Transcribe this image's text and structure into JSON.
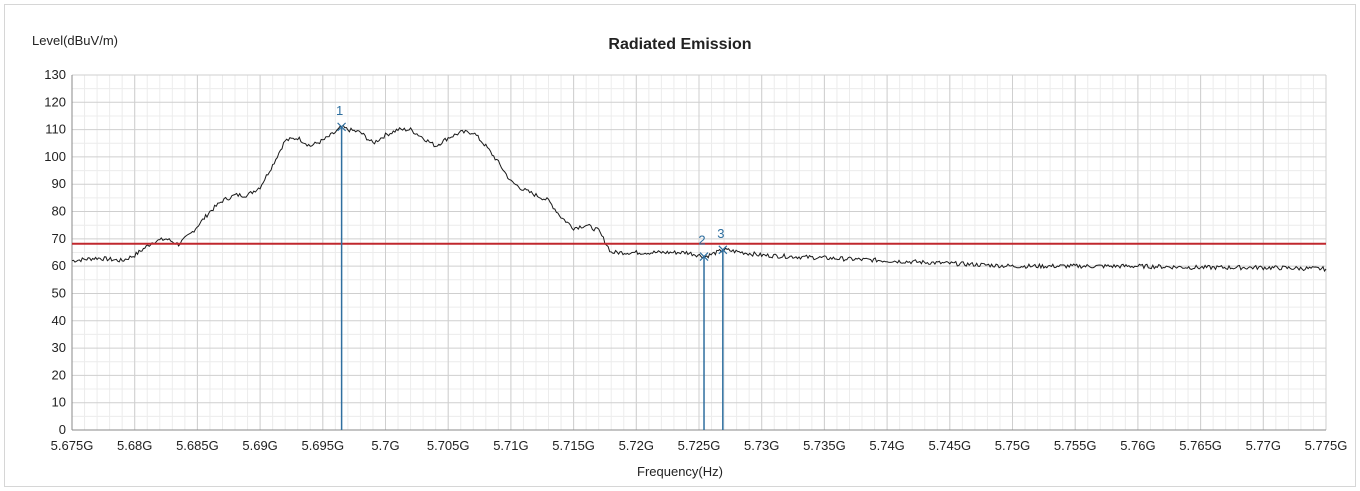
{
  "chart_data": {
    "type": "line",
    "title": "Radiated Emission",
    "ylabel": "Level(dBuV/m)",
    "xlabel": "Frequency(Hz)",
    "ylim": [
      0,
      130
    ],
    "xlim": [
      5.675,
      5.775
    ],
    "x_unit": "GHz",
    "yticks": [
      0,
      10,
      20,
      30,
      40,
      50,
      60,
      70,
      80,
      90,
      100,
      110,
      120,
      130
    ],
    "xticks": [
      {
        "v": 5.675,
        "label": "5.675G"
      },
      {
        "v": 5.68,
        "label": "5.68G"
      },
      {
        "v": 5.685,
        "label": "5.685G"
      },
      {
        "v": 5.69,
        "label": "5.69G"
      },
      {
        "v": 5.695,
        "label": "5.695G"
      },
      {
        "v": 5.7,
        "label": "5.7G"
      },
      {
        "v": 5.705,
        "label": "5.705G"
      },
      {
        "v": 5.71,
        "label": "5.71G"
      },
      {
        "v": 5.715,
        "label": "5.715G"
      },
      {
        "v": 5.72,
        "label": "5.72G"
      },
      {
        "v": 5.725,
        "label": "5.725G"
      },
      {
        "v": 5.73,
        "label": "5.73G"
      },
      {
        "v": 5.735,
        "label": "5.735G"
      },
      {
        "v": 5.74,
        "label": "5.74G"
      },
      {
        "v": 5.745,
        "label": "5.745G"
      },
      {
        "v": 5.75,
        "label": "5.75G"
      },
      {
        "v": 5.755,
        "label": "5.755G"
      },
      {
        "v": 5.76,
        "label": "5.76G"
      },
      {
        "v": 5.765,
        "label": "5.765G"
      },
      {
        "v": 5.77,
        "label": "5.77G"
      },
      {
        "v": 5.775,
        "label": "5.775G"
      }
    ],
    "grid": true,
    "limit_line": {
      "value": 68.2,
      "color": "#c0282e"
    },
    "series": [
      {
        "color": "#1a1a1a",
        "x": [
          5.675,
          5.677,
          5.679,
          5.68,
          5.6815,
          5.6825,
          5.6835,
          5.6845,
          5.686,
          5.687,
          5.688,
          5.689,
          5.69,
          5.691,
          5.692,
          5.693,
          5.694,
          5.695,
          5.696,
          5.6965,
          5.697,
          5.698,
          5.699,
          5.7,
          5.701,
          5.702,
          5.703,
          5.704,
          5.705,
          5.706,
          5.707,
          5.708,
          5.709,
          5.71,
          5.711,
          5.712,
          5.713,
          5.714,
          5.715,
          5.716,
          5.717,
          5.718,
          5.72,
          5.722,
          5.724,
          5.7255,
          5.727,
          5.73,
          5.735,
          5.74,
          5.745,
          5.75,
          5.755,
          5.76,
          5.765,
          5.77,
          5.775
        ],
        "y": [
          62,
          63,
          62,
          64,
          69,
          70,
          68,
          72,
          80,
          84,
          86,
          86,
          89,
          97,
          106,
          107,
          104,
          106,
          109,
          111,
          110,
          109,
          105,
          108,
          110,
          110,
          107,
          104,
          107,
          109,
          109,
          104,
          98,
          91,
          88,
          86,
          84,
          78,
          74,
          75,
          73,
          65,
          65,
          65,
          65,
          63.5,
          66,
          64,
          63,
          62,
          61,
          60,
          60,
          60,
          59.5,
          59.5,
          59
        ]
      }
    ],
    "markers": [
      {
        "label": "1",
        "x": 5.6965,
        "y": 111.0
      },
      {
        "label": "2",
        "x": 5.7254,
        "y": 63.5
      },
      {
        "label": "3",
        "x": 5.7269,
        "y": 66.0
      }
    ]
  }
}
